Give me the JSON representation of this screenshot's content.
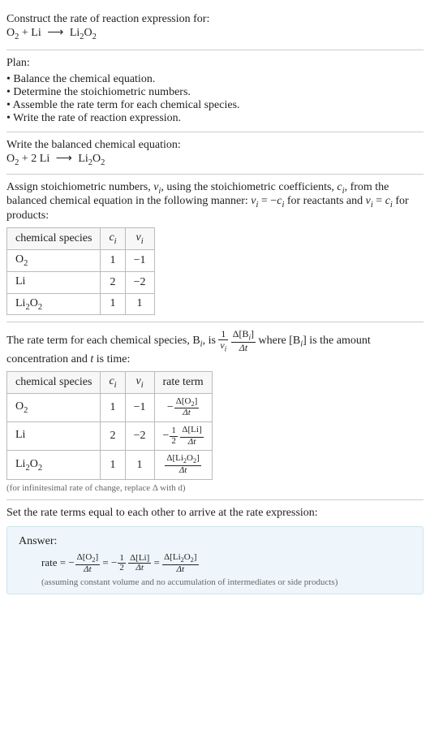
{
  "prompt": {
    "text": "Construct the rate of reaction expression for:",
    "eq_lhs1": "O",
    "eq_lhs1_sub": "2",
    "eq_plus1": " + ",
    "eq_lhs2": "Li",
    "eq_arrow": "⟶",
    "eq_rhs": "Li",
    "eq_rhs_sub1": "2",
    "eq_rhs_mid": "O",
    "eq_rhs_sub2": "2"
  },
  "plan": {
    "label": "Plan:",
    "items": [
      "Balance the chemical equation.",
      "Determine the stoichiometric numbers.",
      "Assemble the rate term for each chemical species.",
      "Write the rate of reaction expression."
    ]
  },
  "balanced": {
    "label": "Write the balanced chemical equation:",
    "o2": "O",
    "o2sub": "2",
    "plus": " + 2 ",
    "li": "Li",
    "arrow": "⟶",
    "li2o2_a": "Li",
    "li2o2_s1": "2",
    "li2o2_b": "O",
    "li2o2_s2": "2"
  },
  "stoich": {
    "intro_a": "Assign stoichiometric numbers, ",
    "nu_i": "ν",
    "nu_i_sub": "i",
    "intro_b": ", using the stoichiometric coefficients, ",
    "c_i": "c",
    "c_i_sub": "i",
    "intro_c": ", from the balanced chemical equation in the following manner: ",
    "rel_react_l": "ν",
    "rel_react_ls": "i",
    "rel_react_eq": " = −",
    "rel_react_r": "c",
    "rel_react_rs": "i",
    "intro_d": " for reactants and ",
    "rel_prod_l": "ν",
    "rel_prod_ls": "i",
    "rel_prod_eq": " = ",
    "rel_prod_r": "c",
    "rel_prod_rs": "i",
    "intro_e": " for products:",
    "headers": {
      "species": "chemical species",
      "c": "c",
      "c_sub": "i",
      "nu": "ν",
      "nu_sub": "i"
    },
    "rows": [
      {
        "sp_a": "O",
        "sp_s1": "2",
        "sp_b": "",
        "sp_s2": "",
        "c": "1",
        "nu": "−1"
      },
      {
        "sp_a": "Li",
        "sp_s1": "",
        "sp_b": "",
        "sp_s2": "",
        "c": "2",
        "nu": "−2"
      },
      {
        "sp_a": "Li",
        "sp_s1": "2",
        "sp_b": "O",
        "sp_s2": "2",
        "c": "1",
        "nu": "1"
      }
    ]
  },
  "rateterm": {
    "intro_a": "The rate term for each chemical species, B",
    "intro_a_sub": "i",
    "intro_b": ", is ",
    "frac1_num": "1",
    "frac1_den_a": "ν",
    "frac1_den_s": "i",
    "frac2_num_a": "Δ[B",
    "frac2_num_s": "i",
    "frac2_num_b": "]",
    "frac2_den": "Δt",
    "intro_c": " where [B",
    "intro_c_sub": "i",
    "intro_d": "] is the amount concentration and ",
    "t": "t",
    "intro_e": " is time:",
    "headers": {
      "species": "chemical species",
      "c": "c",
      "c_sub": "i",
      "nu": "ν",
      "nu_sub": "i",
      "rate": "rate term"
    },
    "rows": [
      {
        "sp_a": "O",
        "sp_s1": "2",
        "sp_b": "",
        "sp_s2": "",
        "c": "1",
        "nu": "−1",
        "neg": "−",
        "coef_num": "",
        "coef_den": "",
        "d_num_a": "Δ[O",
        "d_num_s1": "2",
        "d_num_b": "",
        "d_num_s2": "",
        "d_num_c": "]",
        "d_den": "Δt"
      },
      {
        "sp_a": "Li",
        "sp_s1": "",
        "sp_b": "",
        "sp_s2": "",
        "c": "2",
        "nu": "−2",
        "neg": "−",
        "coef_num": "1",
        "coef_den": "2",
        "d_num_a": "Δ[Li",
        "d_num_s1": "",
        "d_num_b": "",
        "d_num_s2": "",
        "d_num_c": "]",
        "d_den": "Δt"
      },
      {
        "sp_a": "Li",
        "sp_s1": "2",
        "sp_b": "O",
        "sp_s2": "2",
        "c": "1",
        "nu": "1",
        "neg": "",
        "coef_num": "",
        "coef_den": "",
        "d_num_a": "Δ[Li",
        "d_num_s1": "2",
        "d_num_b": "O",
        "d_num_s2": "2",
        "d_num_c": "]",
        "d_den": "Δt"
      }
    ],
    "footnote": "(for infinitesimal rate of change, replace Δ with d)"
  },
  "conclusion": {
    "text": "Set the rate terms equal to each other to arrive at the rate expression:"
  },
  "answer": {
    "label": "Answer:",
    "rate": "rate = ",
    "t1_neg": "−",
    "t1_num_a": "Δ[O",
    "t1_num_s": "2",
    "t1_num_b": "]",
    "t1_den": "Δt",
    "eq1": " = ",
    "t2_neg": "−",
    "t2_cnum": "1",
    "t2_cden": "2",
    "t2_num": "Δ[Li]",
    "t2_den": "Δt",
    "eq2": " = ",
    "t3_num_a": "Δ[Li",
    "t3_num_s1": "2",
    "t3_num_b": "O",
    "t3_num_s2": "2",
    "t3_num_c": "]",
    "t3_den": "Δt",
    "note": "(assuming constant volume and no accumulation of intermediates or side products)"
  }
}
